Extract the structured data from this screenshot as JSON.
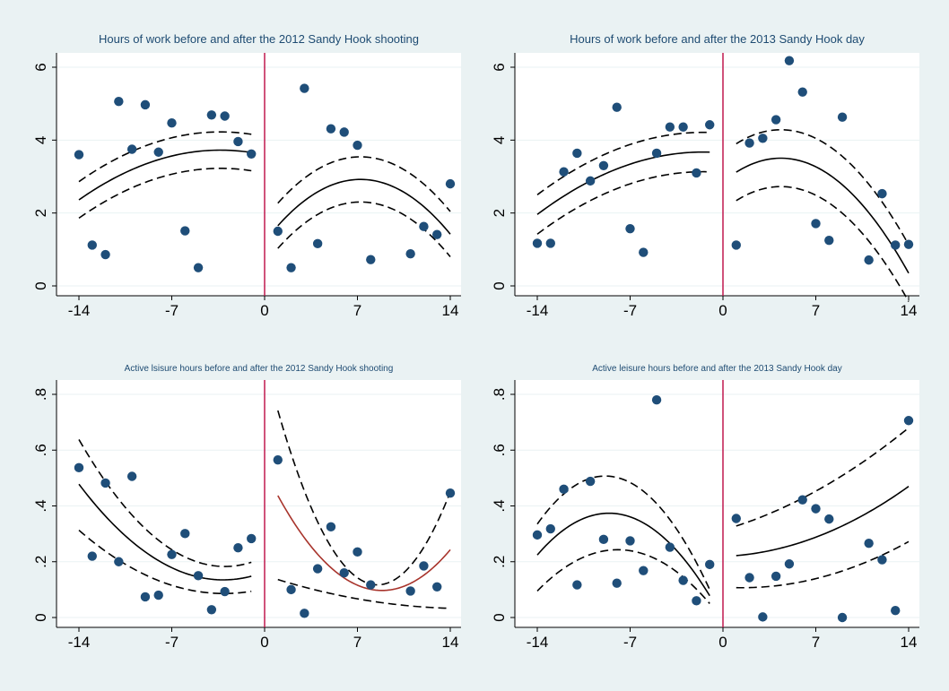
{
  "chart_data": [
    {
      "type": "scatter",
      "title": "Hours of work before and after the 2012 Sandy Hook shooting",
      "xlim": [
        -14,
        14
      ],
      "ylim": [
        0,
        6
      ],
      "xticks": [
        -14,
        -7,
        0,
        7,
        14
      ],
      "yticks": [
        0,
        2,
        4,
        6
      ],
      "ytick_labels": [
        "0",
        "2",
        "4",
        "6"
      ],
      "cutoff_x": 0,
      "points": [
        [
          -14,
          3.6
        ],
        [
          -13,
          1.12
        ],
        [
          -12,
          0.86
        ],
        [
          -11,
          5.06
        ],
        [
          -10,
          3.75
        ],
        [
          -9,
          4.97
        ],
        [
          -8,
          3.67
        ],
        [
          -7,
          4.47
        ],
        [
          -6,
          1.51
        ],
        [
          -5,
          0.5
        ],
        [
          -4,
          4.69
        ],
        [
          -3,
          4.66
        ],
        [
          -2,
          3.96
        ],
        [
          -1,
          3.62
        ],
        [
          1,
          1.5
        ],
        [
          2,
          0.5
        ],
        [
          3,
          5.42
        ],
        [
          4,
          1.16
        ],
        [
          5,
          4.31
        ],
        [
          6,
          4.22
        ],
        [
          7,
          3.86
        ],
        [
          8,
          0.72
        ],
        [
          11,
          0.88
        ],
        [
          12,
          1.63
        ],
        [
          13,
          1.41
        ],
        [
          14,
          2.8
        ]
      ],
      "fits": [
        {
          "x_range": [
            -14,
            -1
          ],
          "fit": [
            -14,
            2.36,
            -4,
            3.72,
            -1,
            3.66
          ],
          "ci": 0.5,
          "fit_color": "#000000"
        },
        {
          "x_range": [
            1,
            14
          ],
          "fit": [
            1,
            1.65,
            7,
            2.92,
            14,
            1.42
          ],
          "ci": 0.62,
          "fit_color": "#000000"
        }
      ]
    },
    {
      "type": "scatter",
      "title": "Hours of work before and after the 2013 Sandy Hook day",
      "xlim": [
        -14,
        14
      ],
      "ylim": [
        0,
        6
      ],
      "xticks": [
        -14,
        -7,
        0,
        7,
        14
      ],
      "yticks": [
        0,
        2,
        4,
        6
      ],
      "ytick_labels": [
        "0",
        "2",
        "4",
        "6"
      ],
      "cutoff_x": 0,
      "points": [
        [
          -14,
          1.17
        ],
        [
          -13,
          1.17
        ],
        [
          -12,
          3.13
        ],
        [
          -11,
          3.64
        ],
        [
          -10,
          2.88
        ],
        [
          -9,
          3.3
        ],
        [
          -8,
          4.9
        ],
        [
          -7,
          1.57
        ],
        [
          -6,
          0.92
        ],
        [
          -5,
          3.64
        ],
        [
          -4,
          4.36
        ],
        [
          -3,
          4.36
        ],
        [
          -2,
          3.1
        ],
        [
          -1,
          4.42
        ],
        [
          1,
          1.12
        ],
        [
          2,
          3.92
        ],
        [
          3,
          4.05
        ],
        [
          4,
          4.56
        ],
        [
          5,
          6.18
        ],
        [
          6,
          5.32
        ],
        [
          7,
          1.71
        ],
        [
          8,
          1.25
        ],
        [
          9,
          4.63
        ],
        [
          11,
          0.71
        ],
        [
          12,
          2.53
        ],
        [
          13,
          1.12
        ],
        [
          14,
          1.14
        ]
      ],
      "fits": [
        {
          "x_range": [
            -14,
            -1
          ],
          "fit": [
            -14,
            1.96,
            -6,
            3.45,
            -1,
            3.67
          ],
          "ci": 0.54,
          "fit_color": "#000000"
        },
        {
          "x_range": [
            1,
            14
          ],
          "fit": [
            1,
            3.12,
            4,
            3.5,
            14,
            0.35
          ],
          "ci": 0.78,
          "fit_color": "#000000"
        }
      ]
    },
    {
      "type": "scatter",
      "title": "Active lsisure hours  before and after the 2012 Sandy Hook shooting",
      "xlim": [
        -14,
        14
      ],
      "ylim": [
        0,
        0.8
      ],
      "xticks": [
        -14,
        -7,
        0,
        7,
        14
      ],
      "yticks": [
        0,
        0.2,
        0.4,
        0.6,
        0.8
      ],
      "ytick_labels": [
        "0",
        ".2",
        ".4",
        ".6",
        ".8"
      ],
      "cutoff_x": 0,
      "points": [
        [
          -14,
          0.537
        ],
        [
          -13,
          0.22
        ],
        [
          -12,
          0.482
        ],
        [
          -11,
          0.2
        ],
        [
          -10,
          0.506
        ],
        [
          -9,
          0.074
        ],
        [
          -8,
          0.08
        ],
        [
          -7,
          0.226
        ],
        [
          -6,
          0.301
        ],
        [
          -5,
          0.15
        ],
        [
          -4,
          0.028
        ],
        [
          -3,
          0.093
        ],
        [
          -2,
          0.25
        ],
        [
          -1,
          0.283
        ],
        [
          1,
          0.565
        ],
        [
          2,
          0.1
        ],
        [
          3,
          0.015
        ],
        [
          4,
          0.175
        ],
        [
          5,
          0.325
        ],
        [
          6,
          0.16
        ],
        [
          7,
          0.235
        ],
        [
          8,
          0.117
        ],
        [
          11,
          0.095
        ],
        [
          12,
          0.185
        ],
        [
          13,
          0.11
        ],
        [
          14,
          0.446
        ]
      ],
      "fits": [
        {
          "x_range": [
            -14,
            -1
          ],
          "fit": [
            -14,
            0.478,
            -3,
            0.135,
            -1,
            0.148
          ],
          "upper": [
            -14,
            0.638,
            -3,
            0.183,
            -1,
            0.198
          ],
          "lower": [
            -14,
            0.313,
            -3,
            0.086,
            -1,
            0.094
          ],
          "fit_color": "#000000"
        },
        {
          "x_range": [
            1,
            14
          ],
          "fit": [
            1,
            0.437,
            9,
            0.097,
            14,
            0.243
          ],
          "upper": [
            1,
            0.742,
            8,
            0.12,
            14,
            0.45
          ],
          "lower": [
            1,
            0.136,
            7,
            0.067,
            14,
            0.033
          ],
          "fit_color": "#a8342c"
        }
      ]
    },
    {
      "type": "scatter",
      "title": "Active leisure hours before and after the 2013 Sandy Hook day",
      "xlim": [
        -14,
        14
      ],
      "ylim": [
        0,
        0.8
      ],
      "xticks": [
        -14,
        -7,
        0,
        7,
        14
      ],
      "yticks": [
        0,
        0.2,
        0.4,
        0.6,
        0.8
      ],
      "ytick_labels": [
        "0",
        ".2",
        ".4",
        ".6",
        ".8"
      ],
      "cutoff_x": 0,
      "points": [
        [
          -14,
          0.296
        ],
        [
          -13,
          0.318
        ],
        [
          -12,
          0.46
        ],
        [
          -11,
          0.117
        ],
        [
          -10,
          0.488
        ],
        [
          -9,
          0.28
        ],
        [
          -8,
          0.123
        ],
        [
          -7,
          0.275
        ],
        [
          -6,
          0.168
        ],
        [
          -5,
          0.78
        ],
        [
          -4,
          0.252
        ],
        [
          -3,
          0.133
        ],
        [
          -2,
          0.06
        ],
        [
          -1,
          0.19
        ],
        [
          1,
          0.355
        ],
        [
          2,
          0.143
        ],
        [
          3,
          0.002
        ],
        [
          4,
          0.148
        ],
        [
          5,
          0.192
        ],
        [
          6,
          0.422
        ],
        [
          7,
          0.39
        ],
        [
          8,
          0.353
        ],
        [
          9,
          0.0
        ],
        [
          11,
          0.266
        ],
        [
          12,
          0.207
        ],
        [
          13,
          0.025
        ],
        [
          14,
          0.706
        ]
      ],
      "fits": [
        {
          "x_range": [
            -14,
            -1
          ],
          "fit": [
            -14,
            0.224,
            -8,
            0.372,
            -1,
            0.078
          ],
          "upper": [
            -14,
            0.335,
            -8,
            0.502,
            -1,
            0.1
          ],
          "lower": [
            -14,
            0.095,
            -8,
            0.243,
            -1,
            0.05
          ],
          "fit_color": "#000000"
        },
        {
          "x_range": [
            1,
            14
          ],
          "fit": [
            1,
            0.222,
            8,
            0.307,
            14,
            0.47
          ],
          "upper": [
            1,
            0.328,
            8,
            0.48,
            14,
            0.68
          ],
          "lower": [
            1,
            0.107,
            8,
            0.152,
            14,
            0.272
          ],
          "fit_color": "#000000"
        }
      ]
    }
  ],
  "colors": {
    "marker": "#1f4e79",
    "cutoff_line": "#c0184f",
    "ci_line": "#000000",
    "background": "#eaf2f3",
    "plot_background": "#ffffff"
  }
}
